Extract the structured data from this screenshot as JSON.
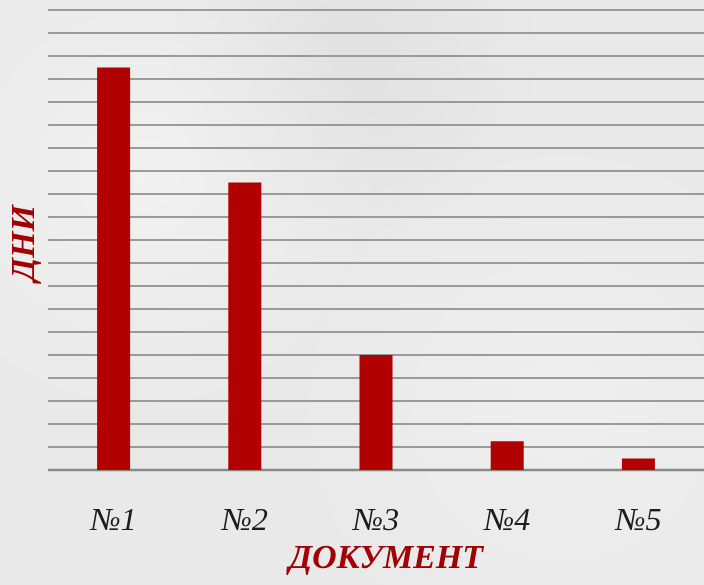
{
  "chart_data": {
    "type": "bar",
    "categories": [
      "№1",
      "№2",
      "№3",
      "№4",
      "№5"
    ],
    "values": [
      17.5,
      12.5,
      5.0,
      1.25,
      0.5
    ],
    "xlabel": "ДОКУМЕНТ",
    "ylabel": "ДНИ",
    "ylim": [
      0,
      20
    ],
    "grid": true,
    "bar_color": "#b00000",
    "label_color": "#a00000"
  }
}
